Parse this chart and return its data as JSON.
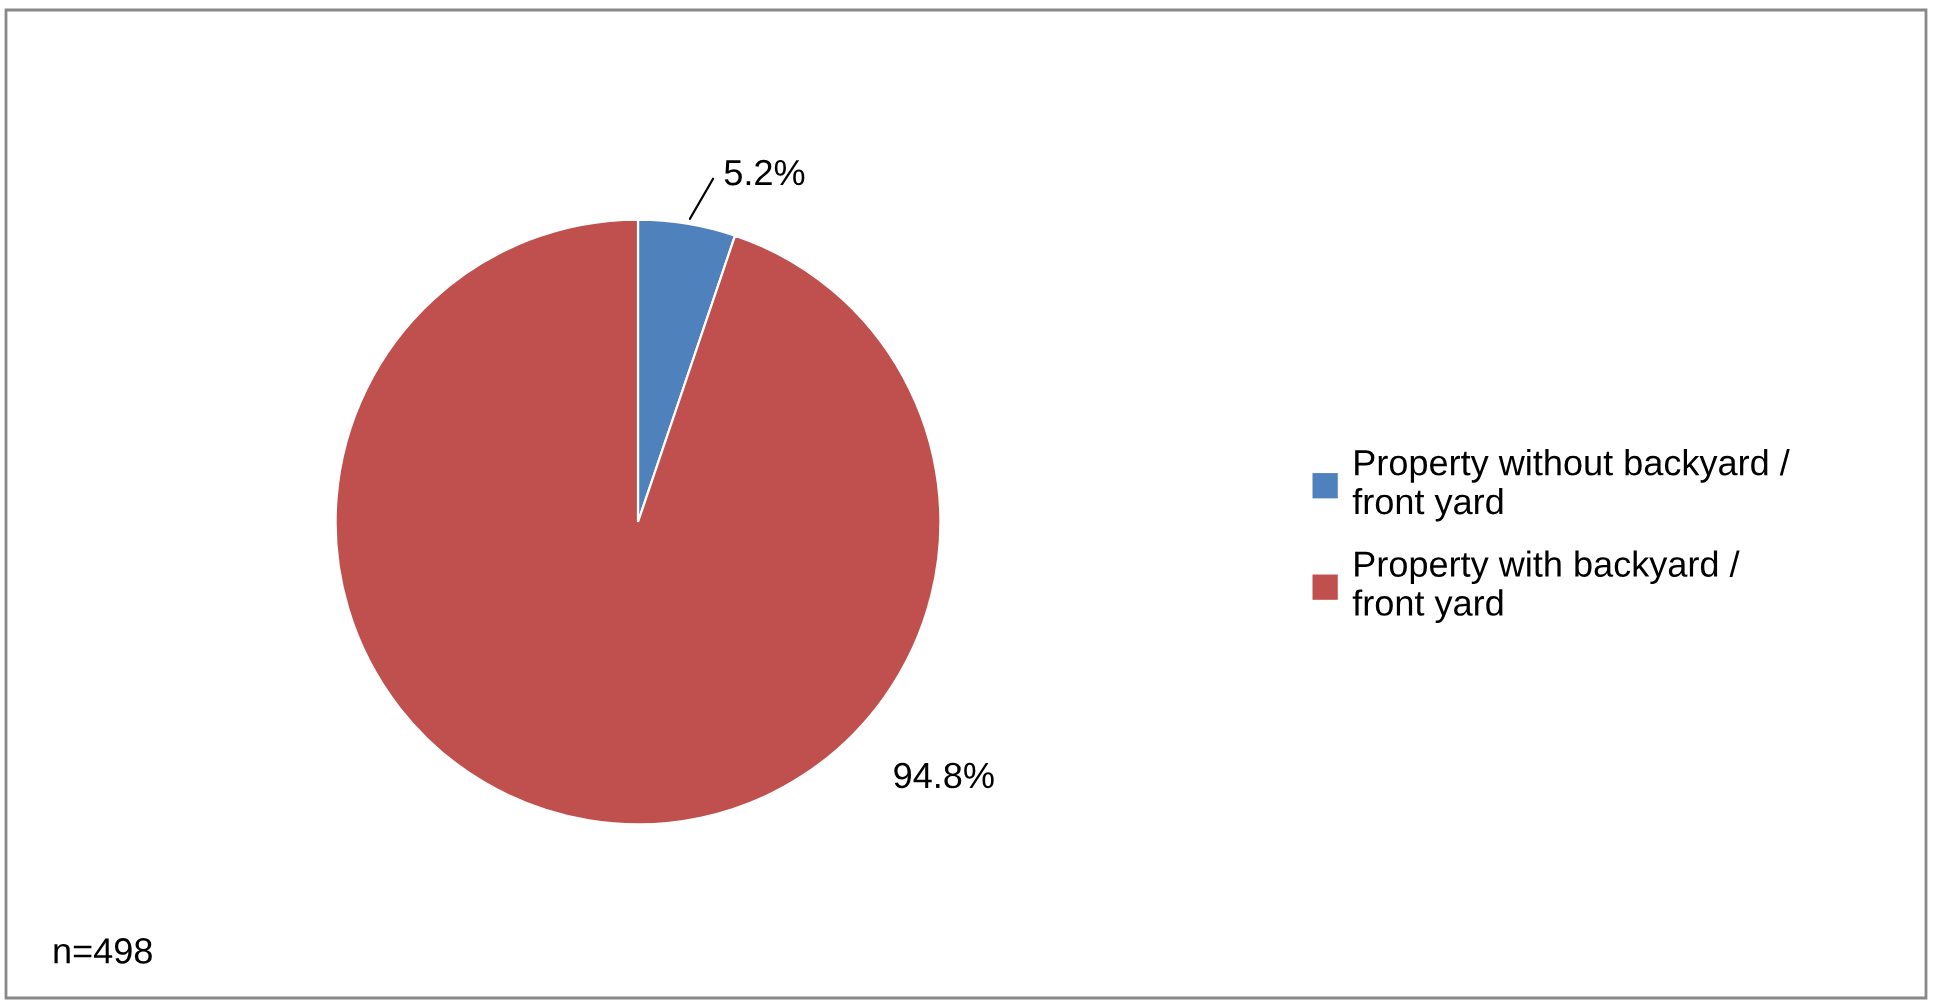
{
  "chart_data": {
    "type": "pie",
    "categories": [
      "Property without backyard / front yard",
      "Property with backyard / front yard"
    ],
    "values": [
      5.2,
      94.8
    ],
    "colors": [
      "#4f81bd",
      "#c0504d"
    ],
    "value_labels": [
      "5.2%",
      "94.8%"
    ],
    "legend": "right",
    "annotations": [
      "n=498"
    ]
  }
}
